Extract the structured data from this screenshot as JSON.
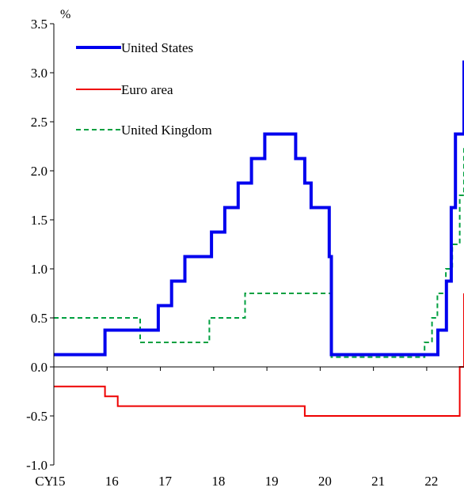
{
  "chart_data": {
    "type": "line",
    "step": true,
    "title": "",
    "xlabel": "",
    "ylabel": "%",
    "x_axis_prefix": "CY",
    "xlim": [
      15,
      22.7
    ],
    "ylim": [
      -1.0,
      3.5
    ],
    "y_ticks": [
      "3.5",
      "3.0",
      "2.5",
      "2.0",
      "1.5",
      "1.0",
      "0.5",
      "0.0",
      "-0.5",
      "-1.0"
    ],
    "y_tick_values": [
      3.5,
      3.0,
      2.5,
      2.0,
      1.5,
      1.0,
      0.5,
      0.0,
      -0.5,
      -1.0
    ],
    "x_ticks": [
      "15",
      "16",
      "17",
      "18",
      "19",
      "20",
      "21",
      "22"
    ],
    "x_tick_values": [
      15,
      16,
      17,
      18,
      19,
      20,
      21,
      22
    ],
    "grid": false,
    "legend_position": "top-left",
    "series": [
      {
        "name": "United States",
        "color": "#0000ee",
        "style": "solid-thick",
        "points": [
          [
            15.0,
            0.125
          ],
          [
            15.96,
            0.375
          ],
          [
            16.96,
            0.625
          ],
          [
            17.21,
            0.875
          ],
          [
            17.46,
            1.125
          ],
          [
            17.96,
            1.375
          ],
          [
            18.21,
            1.625
          ],
          [
            18.46,
            1.875
          ],
          [
            18.71,
            2.125
          ],
          [
            18.96,
            2.375
          ],
          [
            19.54,
            2.125
          ],
          [
            19.71,
            1.875
          ],
          [
            19.83,
            1.625
          ],
          [
            20.17,
            1.125
          ],
          [
            20.21,
            0.125
          ],
          [
            22.21,
            0.375
          ],
          [
            22.37,
            0.875
          ],
          [
            22.46,
            1.625
          ],
          [
            22.54,
            2.375
          ],
          [
            22.7,
            3.125
          ]
        ]
      },
      {
        "name": "Euro area",
        "color": "#ee0000",
        "style": "solid-thin",
        "points": [
          [
            15.0,
            -0.2
          ],
          [
            15.96,
            -0.3
          ],
          [
            16.2,
            -0.4
          ],
          [
            19.71,
            -0.5
          ],
          [
            22.62,
            0.0
          ],
          [
            22.7,
            0.75
          ]
        ]
      },
      {
        "name": "United Kingdom",
        "color": "#00a040",
        "style": "dashed",
        "points": [
          [
            15.0,
            0.5
          ],
          [
            16.62,
            0.25
          ],
          [
            17.92,
            0.5
          ],
          [
            18.59,
            0.75
          ],
          [
            20.21,
            0.1
          ],
          [
            21.96,
            0.25
          ],
          [
            22.1,
            0.5
          ],
          [
            22.2,
            0.75
          ],
          [
            22.36,
            1.0
          ],
          [
            22.48,
            1.25
          ],
          [
            22.62,
            1.75
          ],
          [
            22.7,
            2.25
          ]
        ]
      }
    ]
  }
}
